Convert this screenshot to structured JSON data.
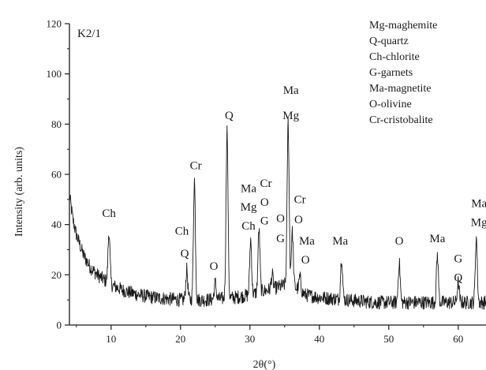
{
  "chart_data": {
    "type": "line",
    "xlabel": "2θ(°)",
    "ylabel": "Intensity (arb. units)",
    "xlim": [
      4,
      64
    ],
    "ylim": [
      0,
      120
    ],
    "x_ticks": [
      10,
      20,
      30,
      40,
      50,
      60
    ],
    "y_ticks": [
      0,
      20,
      40,
      60,
      80,
      100,
      120
    ],
    "sample_label": "K2/1",
    "grid": false,
    "legend_position": "top-right",
    "legend": [
      "Mg-maghemite",
      "Q-quartz",
      "Ch-chlorite",
      "G-garnets",
      "Ma-magnetite",
      "O-olivine",
      "Cr-cristobalite"
    ],
    "background": [
      [
        4,
        52
      ],
      [
        4.5,
        42
      ],
      [
        5,
        36
      ],
      [
        6,
        28
      ],
      [
        7,
        23
      ],
      [
        8,
        20
      ],
      [
        9,
        18
      ],
      [
        10,
        16
      ],
      [
        12,
        13.5
      ],
      [
        14,
        12
      ],
      [
        16,
        11
      ],
      [
        18,
        10.5
      ],
      [
        20,
        10
      ],
      [
        22,
        10
      ],
      [
        24,
        10
      ],
      [
        26,
        10.5
      ],
      [
        28,
        11
      ],
      [
        30,
        12
      ],
      [
        32,
        13.5
      ],
      [
        34,
        15
      ],
      [
        35,
        16
      ],
      [
        36,
        16
      ],
      [
        37,
        14
      ],
      [
        38,
        12
      ],
      [
        40,
        11
      ],
      [
        44,
        10
      ],
      [
        48,
        9
      ],
      [
        52,
        9
      ],
      [
        56,
        9
      ],
      [
        60,
        9
      ],
      [
        64,
        9
      ]
    ],
    "peaks": [
      {
        "x": 9.7,
        "y": 37
      },
      {
        "x": 20.9,
        "y": 22
      },
      {
        "x": 22.0,
        "y": 58
      },
      {
        "x": 25.0,
        "y": 17
      },
      {
        "x": 26.7,
        "y": 78
      },
      {
        "x": 30.1,
        "y": 34
      },
      {
        "x": 31.3,
        "y": 38
      },
      {
        "x": 33.2,
        "y": 20
      },
      {
        "x": 35.5,
        "y": 81
      },
      {
        "x": 36.1,
        "y": 37
      },
      {
        "x": 37.2,
        "y": 19
      },
      {
        "x": 43.2,
        "y": 27
      },
      {
        "x": 51.5,
        "y": 25
      },
      {
        "x": 57.0,
        "y": 28
      },
      {
        "x": 60.0,
        "y": 17
      },
      {
        "x": 62.6,
        "y": 35
      }
    ],
    "annotations": [
      {
        "text": "Ch",
        "x": 9.7,
        "y": 43
      },
      {
        "text": "Ch",
        "x": 20.2,
        "y": 36
      },
      {
        "text": "Q",
        "x": 20.6,
        "y": 27
      },
      {
        "text": "Cr",
        "x": 22.2,
        "y": 62
      },
      {
        "text": "O",
        "x": 24.8,
        "y": 22
      },
      {
        "text": "Q",
        "x": 27.0,
        "y": 82
      },
      {
        "text": "Ma",
        "x": 29.8,
        "y": 53
      },
      {
        "text": "Mg",
        "x": 29.8,
        "y": 45.5
      },
      {
        "text": "Ch",
        "x": 29.8,
        "y": 38
      },
      {
        "text": "Cr",
        "x": 32.3,
        "y": 55
      },
      {
        "text": "O",
        "x": 32.1,
        "y": 47.5
      },
      {
        "text": "G",
        "x": 32.1,
        "y": 40
      },
      {
        "text": "O",
        "x": 34.4,
        "y": 41
      },
      {
        "text": "G",
        "x": 34.4,
        "y": 33
      },
      {
        "text": "Ma",
        "x": 35.9,
        "y": 92
      },
      {
        "text": "Mg",
        "x": 35.9,
        "y": 82
      },
      {
        "text": "Cr",
        "x": 37.2,
        "y": 48.5
      },
      {
        "text": "O",
        "x": 37.0,
        "y": 40.5
      },
      {
        "text": "Ma",
        "x": 38.2,
        "y": 32
      },
      {
        "text": "O",
        "x": 38.0,
        "y": 24.5
      },
      {
        "text": "Ma",
        "x": 43.0,
        "y": 32
      },
      {
        "text": "O",
        "x": 51.5,
        "y": 32
      },
      {
        "text": "Ma",
        "x": 57.0,
        "y": 33
      },
      {
        "text": "G",
        "x": 60.0,
        "y": 25
      },
      {
        "text": "Q",
        "x": 60.0,
        "y": 17.5
      },
      {
        "text": "Ma",
        "x": 63.0,
        "y": 47
      },
      {
        "text": "Mg",
        "x": 63.0,
        "y": 39.5
      }
    ]
  }
}
